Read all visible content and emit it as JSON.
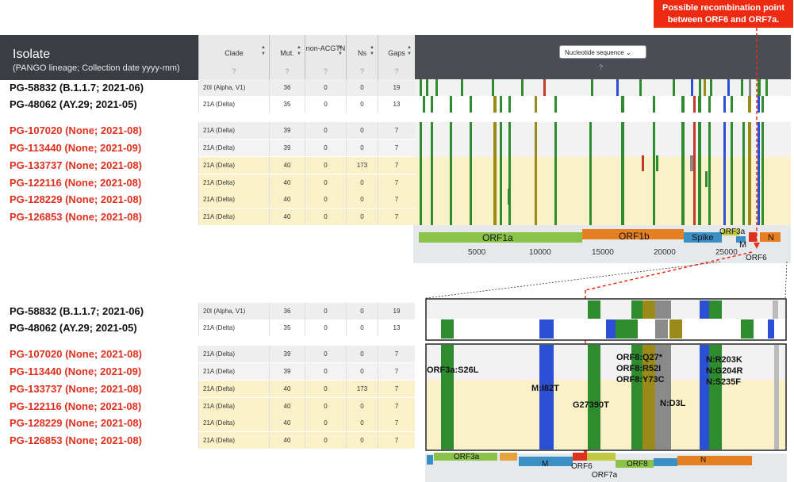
{
  "callout": {
    "line1": "Possible recombination point",
    "line2": "between ORF6 and ORF7a."
  },
  "header": {
    "isolate_title": "Isolate",
    "isolate_sub": "(PANGO lineage; Collection date yyyy-mm)",
    "cols": [
      {
        "label": "Clade",
        "q": "?"
      },
      {
        "label": "Mut.",
        "q": "?"
      },
      {
        "label": "non-ACGTN",
        "q": "?"
      },
      {
        "label": "Ns",
        "q": "?"
      },
      {
        "label": "Gaps",
        "q": "?"
      }
    ],
    "view_select": "Nucleotide sequence",
    "view_q": "?"
  },
  "isolates": [
    {
      "name": "PG-58832 (B.1.1.7; 2021-06)",
      "color": "black",
      "clade": "20I (Alpha, V1)",
      "mut": "36",
      "non": "0",
      "ns": "0",
      "gaps": "19"
    },
    {
      "name": "PG-48062 (AY.29; 2021-05)",
      "color": "black",
      "clade": "21A (Delta)",
      "mut": "35",
      "non": "0",
      "ns": "0",
      "gaps": "13"
    },
    {
      "name": "PG-107020 (None; 2021-08)",
      "color": "red",
      "clade": "21A (Delta)",
      "mut": "39",
      "non": "0",
      "ns": "0",
      "gaps": "7"
    },
    {
      "name": "PG-113440 (None; 2021-09)",
      "color": "red",
      "clade": "21A (Delta)",
      "mut": "39",
      "non": "0",
      "ns": "0",
      "gaps": "7"
    },
    {
      "name": "PG-133737 (None; 2021-08)",
      "color": "red",
      "clade": "21A (Delta)",
      "mut": "40",
      "non": "0",
      "ns": "173",
      "gaps": "7"
    },
    {
      "name": "PG-122116 (None; 2021-08)",
      "color": "red",
      "clade": "21A (Delta)",
      "mut": "40",
      "non": "0",
      "ns": "0",
      "gaps": "7"
    },
    {
      "name": "PG-128229 (None; 2021-08)",
      "color": "red",
      "clade": "21A (Delta)",
      "mut": "40",
      "non": "0",
      "ns": "0",
      "gaps": "7"
    },
    {
      "name": "PG-126853 (None; 2021-08)",
      "color": "red",
      "clade": "21A (Delta)",
      "mut": "40",
      "non": "0",
      "ns": "0",
      "gaps": "7"
    }
  ],
  "genome_genes": [
    "ORF1a",
    "ORF1b",
    "Spike",
    "ORF3a",
    "M",
    "N",
    "ORF6"
  ],
  "genome_ticks": [
    "5000",
    "10000",
    "15000",
    "20000",
    "25000"
  ],
  "zoom_annotations": [
    "ORF3a:S26L",
    "M:I82T",
    "G27390T",
    "ORF8:Q27*",
    "ORF8:R52I",
    "ORF8:Y73C",
    "N:D3L",
    "N:R203K",
    "N:G204R",
    "N:S235F"
  ],
  "zoom_genes": [
    "ORF3a",
    "M",
    "ORF6",
    "ORF7a",
    "ORF8",
    "N"
  ],
  "colors": {
    "green": "#2e8b2e",
    "red": "#c0392b",
    "blue": "#2b50d6",
    "olive": "#9a8a1a",
    "gray": "#8a8a8a",
    "callout": "#ee2b12"
  }
}
